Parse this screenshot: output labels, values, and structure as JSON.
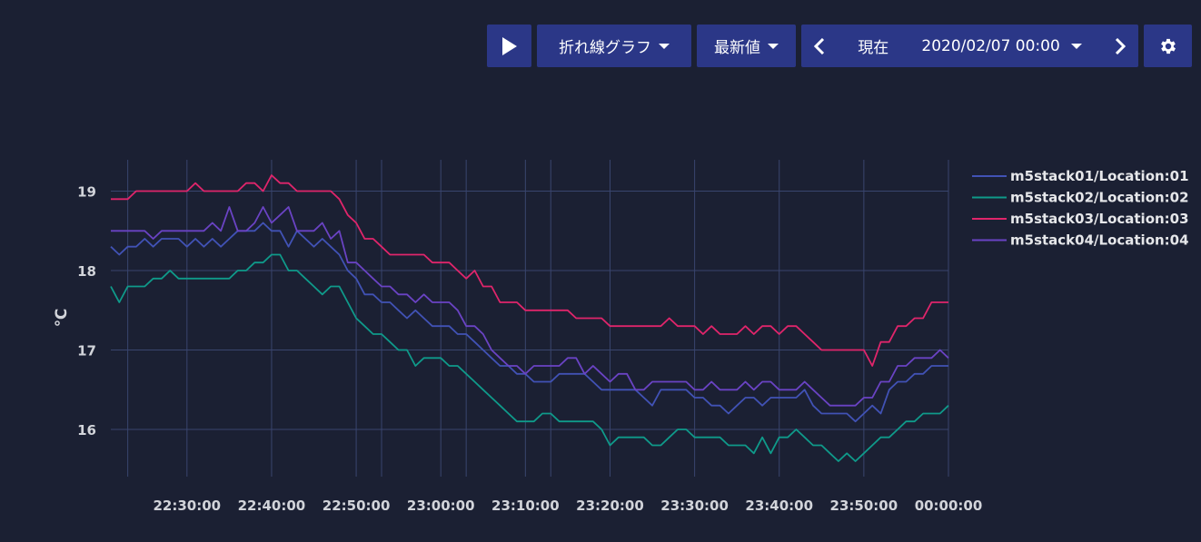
{
  "toolbar": {
    "play_icon": "play-icon",
    "chart_type_label": "折れ線グラフ",
    "value_mode_label": "最新値",
    "prev_icon": "chevron-left-icon",
    "current_label": "現在",
    "datetime_label": "2020/02/07 00:00",
    "next_icon": "chevron-right-icon",
    "settings_icon": "gear-icon",
    "button_color": "#2b3787"
  },
  "chart_data": {
    "type": "line",
    "ylabel": "℃",
    "ylim": [
      15.6,
      19.5
    ],
    "yticks": [
      16,
      17,
      18,
      19
    ],
    "x_start": "22:21",
    "x_end": "00:00",
    "xticks": [
      "22:30:00",
      "22:40:00",
      "22:50:00",
      "23:00:00",
      "23:10:00",
      "23:20:00",
      "23:30:00",
      "23:40:00",
      "23:50:00",
      "00:00:00"
    ],
    "x_minutes": [
      "22:21",
      "22:22",
      "22:23",
      "22:24",
      "22:25",
      "22:26",
      "22:27",
      "22:28",
      "22:29",
      "22:30",
      "22:31",
      "22:32",
      "22:33",
      "22:34",
      "22:35",
      "22:36",
      "22:37",
      "22:38",
      "22:39",
      "22:40",
      "22:41",
      "22:42",
      "22:43",
      "22:44",
      "22:45",
      "22:46",
      "22:47",
      "22:48",
      "22:49",
      "22:50",
      "22:51",
      "22:52",
      "22:53",
      "22:54",
      "22:55",
      "22:56",
      "22:57",
      "22:58",
      "22:59",
      "23:00",
      "23:01",
      "23:02",
      "23:03",
      "23:04",
      "23:05",
      "23:06",
      "23:07",
      "23:08",
      "23:09",
      "23:10",
      "23:11",
      "23:12",
      "23:13",
      "23:14",
      "23:15",
      "23:16",
      "23:17",
      "23:18",
      "23:19",
      "23:20",
      "23:21",
      "23:22",
      "23:23",
      "23:24",
      "23:25",
      "23:26",
      "23:27",
      "23:28",
      "23:29",
      "23:30",
      "23:31",
      "23:32",
      "23:33",
      "23:34",
      "23:35",
      "23:36",
      "23:37",
      "23:38",
      "23:39",
      "23:40",
      "23:41",
      "23:42",
      "23:43",
      "23:44",
      "23:45",
      "23:46",
      "23:47",
      "23:48",
      "23:49",
      "23:50",
      "23:51",
      "23:52",
      "23:53",
      "23:54",
      "23:55",
      "23:56",
      "23:57",
      "23:58",
      "23:59",
      "00:00"
    ],
    "legend_position": "right",
    "grid": true,
    "series": [
      {
        "name": "m5stack01/Location:01",
        "color": "#4152b5",
        "values": [
          18.3,
          18.2,
          18.3,
          18.3,
          18.4,
          18.3,
          18.4,
          18.4,
          18.4,
          18.3,
          18.4,
          18.3,
          18.4,
          18.3,
          18.4,
          18.5,
          18.5,
          18.5,
          18.6,
          18.5,
          18.5,
          18.3,
          18.5,
          18.4,
          18.3,
          18.4,
          18.3,
          18.2,
          18.0,
          17.9,
          17.7,
          17.7,
          17.6,
          17.6,
          17.5,
          17.4,
          17.5,
          17.4,
          17.3,
          17.3,
          17.3,
          17.2,
          17.2,
          17.1,
          17.0,
          16.9,
          16.8,
          16.8,
          16.7,
          16.7,
          16.6,
          16.6,
          16.6,
          16.7,
          16.7,
          16.7,
          16.7,
          16.6,
          16.5,
          16.5,
          16.5,
          16.5,
          16.5,
          16.4,
          16.3,
          16.5,
          16.5,
          16.5,
          16.5,
          16.4,
          16.4,
          16.3,
          16.3,
          16.2,
          16.3,
          16.4,
          16.4,
          16.3,
          16.4,
          16.4,
          16.4,
          16.4,
          16.5,
          16.3,
          16.2,
          16.2,
          16.2,
          16.2,
          16.1,
          16.2,
          16.3,
          16.2,
          16.5,
          16.6,
          16.6,
          16.7,
          16.7,
          16.8,
          16.8,
          16.8
        ]
      },
      {
        "name": "m5stack02/Location:02",
        "color": "#0f9a8a",
        "values": [
          17.8,
          17.6,
          17.8,
          17.8,
          17.8,
          17.9,
          17.9,
          18.0,
          17.9,
          17.9,
          17.9,
          17.9,
          17.9,
          17.9,
          17.9,
          18.0,
          18.0,
          18.1,
          18.1,
          18.2,
          18.2,
          18.0,
          18.0,
          17.9,
          17.8,
          17.7,
          17.8,
          17.8,
          17.6,
          17.4,
          17.3,
          17.2,
          17.2,
          17.1,
          17.0,
          17.0,
          16.8,
          16.9,
          16.9,
          16.9,
          16.8,
          16.8,
          16.7,
          16.6,
          16.5,
          16.4,
          16.3,
          16.2,
          16.1,
          16.1,
          16.1,
          16.2,
          16.2,
          16.1,
          16.1,
          16.1,
          16.1,
          16.1,
          16.0,
          15.8,
          15.9,
          15.9,
          15.9,
          15.9,
          15.8,
          15.8,
          15.9,
          16.0,
          16.0,
          15.9,
          15.9,
          15.9,
          15.9,
          15.8,
          15.8,
          15.8,
          15.7,
          15.9,
          15.7,
          15.9,
          15.9,
          16.0,
          15.9,
          15.8,
          15.8,
          15.7,
          15.6,
          15.7,
          15.6,
          15.7,
          15.8,
          15.9,
          15.9,
          16.0,
          16.1,
          16.1,
          16.2,
          16.2,
          16.2,
          16.3
        ]
      },
      {
        "name": "m5stack03/Location:03",
        "color": "#e0256b",
        "values": [
          18.9,
          18.9,
          18.9,
          19.0,
          19.0,
          19.0,
          19.0,
          19.0,
          19.0,
          19.0,
          19.1,
          19.0,
          19.0,
          19.0,
          19.0,
          19.0,
          19.1,
          19.1,
          19.0,
          19.2,
          19.1,
          19.1,
          19.0,
          19.0,
          19.0,
          19.0,
          19.0,
          18.9,
          18.7,
          18.6,
          18.4,
          18.4,
          18.3,
          18.2,
          18.2,
          18.2,
          18.2,
          18.2,
          18.1,
          18.1,
          18.1,
          18.0,
          17.9,
          18.0,
          17.8,
          17.8,
          17.6,
          17.6,
          17.6,
          17.5,
          17.5,
          17.5,
          17.5,
          17.5,
          17.5,
          17.4,
          17.4,
          17.4,
          17.4,
          17.3,
          17.3,
          17.3,
          17.3,
          17.3,
          17.3,
          17.3,
          17.4,
          17.3,
          17.3,
          17.3,
          17.2,
          17.3,
          17.2,
          17.2,
          17.2,
          17.3,
          17.2,
          17.3,
          17.3,
          17.2,
          17.3,
          17.3,
          17.2,
          17.1,
          17.0,
          17.0,
          17.0,
          17.0,
          17.0,
          17.0,
          16.8,
          17.1,
          17.1,
          17.3,
          17.3,
          17.4,
          17.4,
          17.6,
          17.6,
          17.6
        ]
      },
      {
        "name": "m5stack04/Location:04",
        "color": "#6a43c4",
        "values": [
          18.5,
          18.5,
          18.5,
          18.5,
          18.5,
          18.4,
          18.5,
          18.5,
          18.5,
          18.5,
          18.5,
          18.5,
          18.6,
          18.5,
          18.8,
          18.5,
          18.5,
          18.6,
          18.8,
          18.6,
          18.7,
          18.8,
          18.5,
          18.5,
          18.5,
          18.6,
          18.4,
          18.5,
          18.1,
          18.1,
          18.0,
          17.9,
          17.8,
          17.8,
          17.7,
          17.7,
          17.6,
          17.7,
          17.6,
          17.6,
          17.6,
          17.5,
          17.3,
          17.3,
          17.2,
          17.0,
          16.9,
          16.8,
          16.8,
          16.7,
          16.8,
          16.8,
          16.8,
          16.8,
          16.9,
          16.9,
          16.7,
          16.8,
          16.7,
          16.6,
          16.7,
          16.7,
          16.5,
          16.5,
          16.6,
          16.6,
          16.6,
          16.6,
          16.6,
          16.5,
          16.5,
          16.6,
          16.5,
          16.5,
          16.5,
          16.6,
          16.5,
          16.6,
          16.6,
          16.5,
          16.5,
          16.5,
          16.6,
          16.5,
          16.4,
          16.3,
          16.3,
          16.3,
          16.3,
          16.4,
          16.4,
          16.6,
          16.6,
          16.8,
          16.8,
          16.9,
          16.9,
          16.9,
          17.0,
          16.9
        ]
      }
    ]
  }
}
